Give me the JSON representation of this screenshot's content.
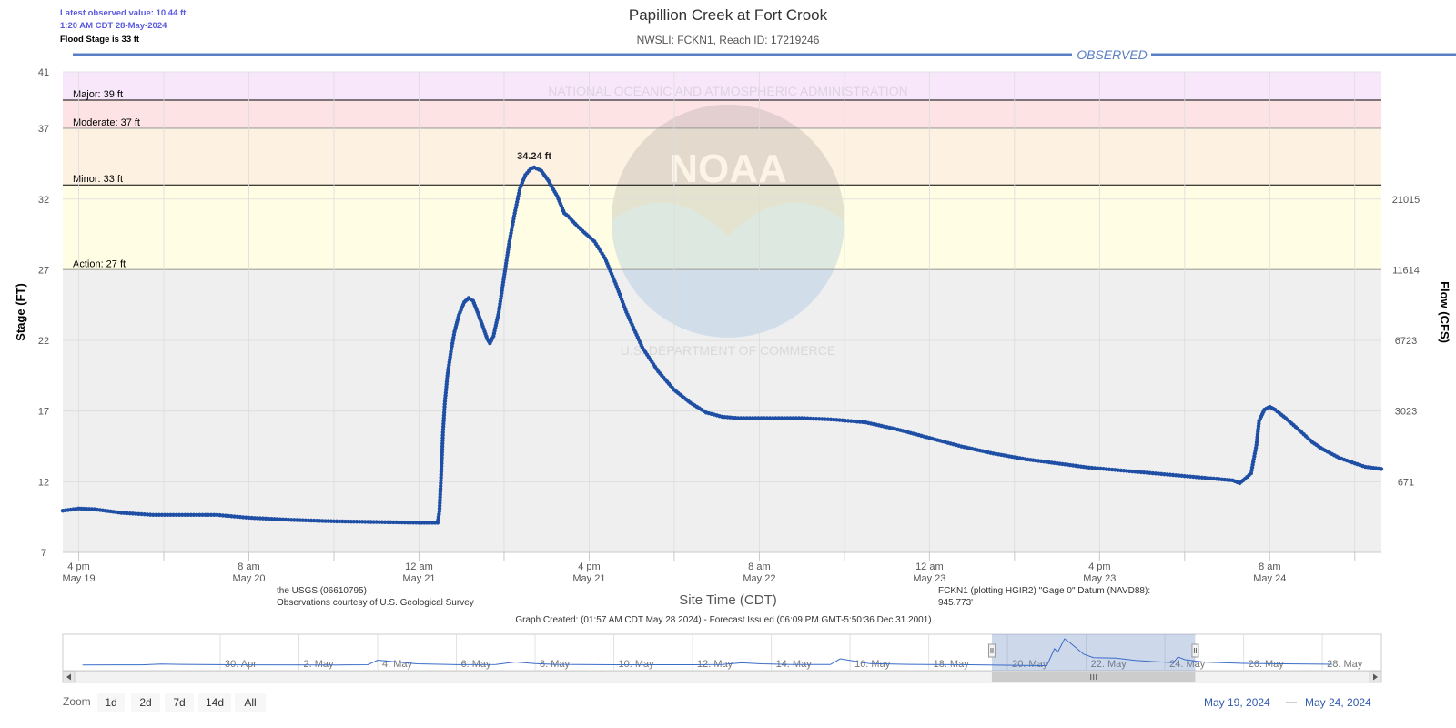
{
  "header": {
    "title": "Papillion Creek at Fort Crook",
    "subtitle": "NWSLI: FCKN1, Reach ID: 17219246",
    "latest_value": "Latest observed value: 10.44 ft",
    "latest_time": "1:20 AM CDT 28-May-2024",
    "flood_stage_note": "Flood Stage is 33 ft",
    "observed_label": "OBSERVED"
  },
  "footer": {
    "source_line1": "the USGS (06610795)",
    "source_line2": "Observations courtesy of U.S. Geological Survey",
    "datum_line1": "FCKN1 (plotting HGIR2) \"Gage 0\" Datum (NAVD88):",
    "datum_line2": "945.773'",
    "graph_created": "Graph Created: (01:57 AM CDT May 28 2024) - Forecast Issued (06:09 PM GMT-5:50:36 Dec 31 2001)"
  },
  "watermark": {
    "logo_text": "NOAA",
    "ring_top": "NATIONAL OCEANIC AND ATMOSPHERIC ADMINISTRATION",
    "ring_bottom": "U.S. DEPARTMENT OF COMMERCE"
  },
  "colors": {
    "line": "#1f4fa5",
    "plot_bg": "#efefef",
    "action_band": "#fffde3",
    "minor_band": "#fdf1e1",
    "moderate_band": "#fde3e3",
    "major_band": "#f8e7fb",
    "accent": "#5b7fc4"
  },
  "chart_data": {
    "type": "line",
    "title": "Papillion Creek at Fort Crook",
    "xlabel": "Site Time (CDT)",
    "ylabel": "Stage (FT)",
    "y2label": "Flow (CFS)",
    "ylim": [
      7,
      41
    ],
    "xlim": [
      "2024-05-19T14:30",
      "2024-05-24T18:30"
    ],
    "yticks": [
      7,
      12,
      17,
      22,
      27,
      32,
      37,
      41
    ],
    "y2ticks": [
      {
        "stage": 12,
        "label": "671"
      },
      {
        "stage": 17,
        "label": "3023"
      },
      {
        "stage": 22,
        "label": "6723"
      },
      {
        "stage": 27,
        "label": "11614"
      },
      {
        "stage": 32,
        "label": "21015"
      }
    ],
    "xticks": [
      {
        "t": "2024-05-19T16:00",
        "time": "4 pm",
        "date": "May 19"
      },
      {
        "t": "2024-05-20T08:00",
        "time": "8 am",
        "date": "May 20"
      },
      {
        "t": "2024-05-21T00:00",
        "time": "12 am",
        "date": "May 21"
      },
      {
        "t": "2024-05-21T16:00",
        "time": "4 pm",
        "date": "May 21"
      },
      {
        "t": "2024-05-22T08:00",
        "time": "8 am",
        "date": "May 22"
      },
      {
        "t": "2024-05-23T00:00",
        "time": "12 am",
        "date": "May 23"
      },
      {
        "t": "2024-05-23T16:00",
        "time": "4 pm",
        "date": "May 23"
      },
      {
        "t": "2024-05-24T08:00",
        "time": "8 am",
        "date": "May 24"
      }
    ],
    "grid": true,
    "legend": "none",
    "thresholds": [
      {
        "name": "Action",
        "label": "Action: 27 ft",
        "value": 27
      },
      {
        "name": "Minor",
        "label": "Minor: 33 ft",
        "value": 33
      },
      {
        "name": "Moderate",
        "label": "Moderate: 37 ft",
        "value": 37
      },
      {
        "name": "Major",
        "label": "Major: 39 ft",
        "value": 39
      }
    ],
    "peak": {
      "t": "2024-05-21T10:50",
      "value": 34.24,
      "label": "34.24 ft"
    },
    "series": [
      {
        "values": [
          [
            "2024-05-19T14:30",
            9.95
          ],
          [
            "2024-05-19T16:00",
            10.1
          ],
          [
            "2024-05-19T17:30",
            10.05
          ],
          [
            "2024-05-19T20:00",
            9.8
          ],
          [
            "2024-05-19T23:00",
            9.65
          ],
          [
            "2024-05-20T02:00",
            9.65
          ],
          [
            "2024-05-20T05:00",
            9.65
          ],
          [
            "2024-05-20T08:00",
            9.45
          ],
          [
            "2024-05-20T12:00",
            9.3
          ],
          [
            "2024-05-20T16:00",
            9.2
          ],
          [
            "2024-05-20T20:00",
            9.15
          ],
          [
            "2024-05-21T00:00",
            9.1
          ],
          [
            "2024-05-21T01:45",
            9.1
          ],
          [
            "2024-05-21T01:55",
            9.9
          ],
          [
            "2024-05-21T02:05",
            12.5
          ],
          [
            "2024-05-21T02:15",
            15.5
          ],
          [
            "2024-05-21T02:25",
            17.5
          ],
          [
            "2024-05-21T02:40",
            19.5
          ],
          [
            "2024-05-21T03:00",
            21.2
          ],
          [
            "2024-05-21T03:20",
            22.6
          ],
          [
            "2024-05-21T03:45",
            23.8
          ],
          [
            "2024-05-21T04:15",
            24.7
          ],
          [
            "2024-05-21T04:40",
            25.0
          ],
          [
            "2024-05-21T05:05",
            24.8
          ],
          [
            "2024-05-21T05:30",
            24.0
          ],
          [
            "2024-05-21T06:00",
            23.0
          ],
          [
            "2024-05-21T06:25",
            22.1
          ],
          [
            "2024-05-21T06:40",
            21.8
          ],
          [
            "2024-05-21T07:00",
            22.3
          ],
          [
            "2024-05-21T07:30",
            24.0
          ],
          [
            "2024-05-21T08:00",
            26.5
          ],
          [
            "2024-05-21T08:30",
            29.0
          ],
          [
            "2024-05-21T09:00",
            31.0
          ],
          [
            "2024-05-21T09:30",
            32.8
          ],
          [
            "2024-05-21T10:00",
            33.7
          ],
          [
            "2024-05-21T10:30",
            34.15
          ],
          [
            "2024-05-21T10:50",
            34.24
          ],
          [
            "2024-05-21T11:30",
            34.0
          ],
          [
            "2024-05-21T12:10",
            33.3
          ],
          [
            "2024-05-21T13:00",
            32.2
          ],
          [
            "2024-05-21T13:40",
            31.0
          ],
          [
            "2024-05-21T14:00",
            30.8
          ],
          [
            "2024-05-21T15:00",
            30.0
          ],
          [
            "2024-05-21T16:30",
            29.0
          ],
          [
            "2024-05-21T17:30",
            27.8
          ],
          [
            "2024-05-21T18:30",
            26.0
          ],
          [
            "2024-05-21T19:30",
            24.0
          ],
          [
            "2024-05-21T21:00",
            21.5
          ],
          [
            "2024-05-21T22:30",
            19.8
          ],
          [
            "2024-05-22T00:00",
            18.5
          ],
          [
            "2024-05-22T01:30",
            17.6
          ],
          [
            "2024-05-22T03:00",
            16.9
          ],
          [
            "2024-05-22T04:30",
            16.6
          ],
          [
            "2024-05-22T06:00",
            16.5
          ],
          [
            "2024-05-22T09:00",
            16.5
          ],
          [
            "2024-05-22T12:00",
            16.5
          ],
          [
            "2024-05-22T15:00",
            16.4
          ],
          [
            "2024-05-22T18:00",
            16.2
          ],
          [
            "2024-05-22T21:00",
            15.7
          ],
          [
            "2024-05-23T00:00",
            15.1
          ],
          [
            "2024-05-23T03:00",
            14.5
          ],
          [
            "2024-05-23T06:00",
            14.0
          ],
          [
            "2024-05-23T09:00",
            13.6
          ],
          [
            "2024-05-23T12:00",
            13.3
          ],
          [
            "2024-05-23T15:00",
            13.0
          ],
          [
            "2024-05-23T18:00",
            12.8
          ],
          [
            "2024-05-23T21:00",
            12.6
          ],
          [
            "2024-05-24T00:00",
            12.4
          ],
          [
            "2024-05-24T03:00",
            12.2
          ],
          [
            "2024-05-24T04:30",
            12.1
          ],
          [
            "2024-05-24T05:10",
            11.9
          ],
          [
            "2024-05-24T05:40",
            12.2
          ],
          [
            "2024-05-24T06:15",
            12.6
          ],
          [
            "2024-05-24T06:45",
            14.6
          ],
          [
            "2024-05-24T07:00",
            16.3
          ],
          [
            "2024-05-24T07:30",
            17.1
          ],
          [
            "2024-05-24T08:00",
            17.3
          ],
          [
            "2024-05-24T08:30",
            17.1
          ],
          [
            "2024-05-24T09:30",
            16.5
          ],
          [
            "2024-05-24T11:00",
            15.5
          ],
          [
            "2024-05-24T12:00",
            14.8
          ],
          [
            "2024-05-24T13:00",
            14.3
          ],
          [
            "2024-05-24T14:30",
            13.7
          ],
          [
            "2024-05-24T16:00",
            13.3
          ],
          [
            "2024-05-24T17:00",
            13.05
          ],
          [
            "2024-05-24T18:30",
            12.9
          ]
        ]
      }
    ]
  },
  "navigator": {
    "xlim": [
      "2024-04-26T00:00",
      "2024-05-29T12:00"
    ],
    "selection": [
      "2024-05-19T14:30",
      "2024-05-24T18:30"
    ],
    "labels": [
      {
        "t": "2024-04-30T00:00",
        "text": "30. Apr"
      },
      {
        "t": "2024-05-02T00:00",
        "text": "2. May"
      },
      {
        "t": "2024-05-04T00:00",
        "text": "4. May"
      },
      {
        "t": "2024-05-06T00:00",
        "text": "6. May"
      },
      {
        "t": "2024-05-08T00:00",
        "text": "8. May"
      },
      {
        "t": "2024-05-10T00:00",
        "text": "10. May"
      },
      {
        "t": "2024-05-12T00:00",
        "text": "12. May"
      },
      {
        "t": "2024-05-14T00:00",
        "text": "14. May"
      },
      {
        "t": "2024-05-16T00:00",
        "text": "16. May"
      },
      {
        "t": "2024-05-18T00:00",
        "text": "18. May"
      },
      {
        "t": "2024-05-20T00:00",
        "text": "20. May"
      },
      {
        "t": "2024-05-22T00:00",
        "text": "22. May"
      },
      {
        "t": "2024-05-24T00:00",
        "text": "24. May"
      },
      {
        "t": "2024-05-26T00:00",
        "text": "26. May"
      },
      {
        "t": "2024-05-28T00:00",
        "text": "28. May"
      }
    ],
    "series": [
      [
        "2024-04-26T12:00",
        9.8
      ],
      [
        "2024-04-28T00:00",
        9.9
      ],
      [
        "2024-04-28T12:00",
        10.6
      ],
      [
        "2024-04-29T00:00",
        10.3
      ],
      [
        "2024-04-30T12:00",
        9.9
      ],
      [
        "2024-05-03T00:00",
        9.8
      ],
      [
        "2024-05-03T18:00",
        10.0
      ],
      [
        "2024-05-04T00:00",
        14.2
      ],
      [
        "2024-05-04T12:00",
        12.5
      ],
      [
        "2024-05-05T00:00",
        10.8
      ],
      [
        "2024-05-06T00:00",
        10.1
      ],
      [
        "2024-05-07T00:00",
        10.2
      ],
      [
        "2024-05-07T12:00",
        12.5
      ],
      [
        "2024-05-08T00:00",
        11.0
      ],
      [
        "2024-05-08T12:00",
        10.3
      ],
      [
        "2024-05-10T00:00",
        10.0
      ],
      [
        "2024-05-12T00:00",
        10.0
      ],
      [
        "2024-05-12T18:00",
        10.2
      ],
      [
        "2024-05-13T06:00",
        11.8
      ],
      [
        "2024-05-13T18:00",
        10.8
      ],
      [
        "2024-05-14T12:00",
        10.2
      ],
      [
        "2024-05-15T12:00",
        10.2
      ],
      [
        "2024-05-15T18:00",
        15.5
      ],
      [
        "2024-05-16T00:00",
        14.0
      ],
      [
        "2024-05-16T12:00",
        11.0
      ],
      [
        "2024-05-17T12:00",
        10.3
      ],
      [
        "2024-05-19T00:00",
        10.0
      ],
      [
        "2024-05-21T00:00",
        9.1
      ],
      [
        "2024-05-21T04:40",
        25.0
      ],
      [
        "2024-05-21T06:40",
        21.8
      ],
      [
        "2024-05-21T10:50",
        34.24
      ],
      [
        "2024-05-21T14:00",
        30.8
      ],
      [
        "2024-05-21T22:30",
        19.8
      ],
      [
        "2024-05-22T04:30",
        16.6
      ],
      [
        "2024-05-22T18:00",
        16.2
      ],
      [
        "2024-05-23T06:00",
        14.0
      ],
      [
        "2024-05-23T21:00",
        12.6
      ],
      [
        "2024-05-24T05:10",
        11.9
      ],
      [
        "2024-05-24T08:00",
        17.3
      ],
      [
        "2024-05-24T12:00",
        14.8
      ],
      [
        "2024-05-25T00:00",
        12.4
      ],
      [
        "2024-05-26T00:00",
        11.3
      ],
      [
        "2024-05-27T00:00",
        10.8
      ],
      [
        "2024-05-28T00:00",
        10.5
      ],
      [
        "2024-05-28T06:00",
        10.44
      ]
    ]
  },
  "controls": {
    "zoom_label": "Zoom",
    "zoom_buttons": [
      "1d",
      "2d",
      "7d",
      "14d",
      "All"
    ],
    "range_from": "May 19, 2024",
    "range_sep": "—",
    "range_to": "May 24, 2024"
  }
}
